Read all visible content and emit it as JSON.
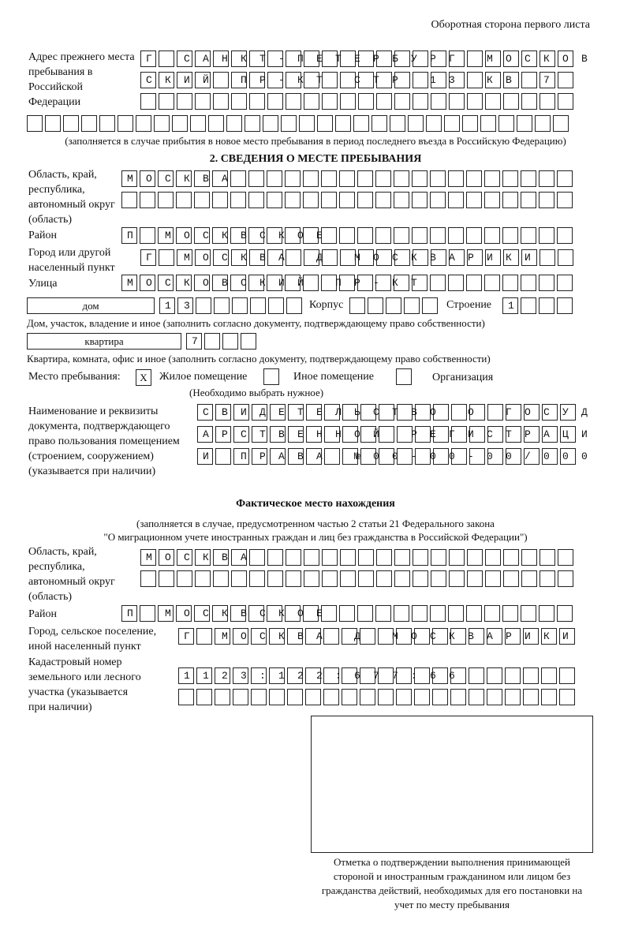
{
  "header": {
    "title": "Оборотная сторона первого листа"
  },
  "prev_address": {
    "label": "Адрес прежнего места пребывания в Российской Федерации",
    "rows": [
      "Г САНКТ-ПЕТЕРБУРГ МОСКОВ",
      "СКИЙ ПР-КТ СТР 13 КВ 7  ",
      "                        ",
      "                              "
    ],
    "note": "(заполняется в случае прибытия в новое место пребывания в период последнего въезда в Российскую Федерацию)"
  },
  "section2": {
    "heading": "2. СВЕДЕНИЯ О МЕСТЕ ПРЕБЫВАНИЯ",
    "region_label": "Область, край, республика, автономный округ (область)",
    "region_rows": [
      "МОСКВА                   ",
      "                         "
    ],
    "district_label": "Район",
    "district": "П МОСКВСКОЕ              ",
    "city_label": "Город или другой населенный пункт",
    "city": "Г МОСКВА Д МОСКВАРИКИ   ",
    "street_label": "Улица",
    "street": "МОСКОВСКИЙ ПР-КТ         ",
    "house_type": "дом",
    "house": "13      ",
    "korpus_label": "Корпус",
    "korpus": "     ",
    "building_label": "Строение",
    "building": "1   ",
    "house_note": "Дом, участок, владение и иное (заполнить согласно документу, подтверждающему право собственности)",
    "flat_type": "квартира",
    "flat": "7   ",
    "flat_note": "Квартира, комната, офис и иное (заполнить согласно документу, подтверждающему право собственности)",
    "place_label": "Место пребывания:",
    "options": [
      {
        "label": "Жилое помещение",
        "mark": "X",
        "checked": true
      },
      {
        "label": "Иное помещение",
        "mark": "",
        "checked": false
      },
      {
        "label": "Организация",
        "mark": "",
        "checked": false
      }
    ],
    "choose_note": "(Необходимо выбрать нужное)",
    "doc_label": "Наименование и реквизиты документа, подтверждающего право пользования помещением (строением, сооружением) (указывается при наличии)",
    "doc_rows": [
      "СВИДЕТЕЛЬСТВО О ГОСУД",
      "АРСТВЕННОЙ РЕГИСТРАЦИ",
      "И ПРАВА №00-00-00/000"
    ]
  },
  "actual": {
    "heading": "Фактическое место нахождения",
    "note1": "(заполняется в случае, предусмотренном частью 2 статьи 21 Федерального закона",
    "note2": "\"О миграционном учете иностранных граждан и лиц без гражданства в Российской Федерации\")",
    "region_label": "Область, край, республика, автономный округ (область)",
    "region_rows": [
      "МОСКВА                  ",
      "                        "
    ],
    "district_label": "Район",
    "district": "П МОСКВСКОЕ              ",
    "city_label": "Город, сельское поселение, иной населенный пункт",
    "city": "Г МОСКВА Д МОСКВАРИКИ ",
    "cadastral_label": "Кадастровый номер земельного или лесного участка (указывается при наличии)",
    "cadastral_rows": [
      "1123:122:677:66       ",
      "                      "
    ]
  },
  "stamp": {
    "caption": "Отметка о подтверждении выполнения принимающей стороной и иностранным гражданином или лицом без гражданства действий, необходимых для его постановки на учет по месту пребывания"
  }
}
